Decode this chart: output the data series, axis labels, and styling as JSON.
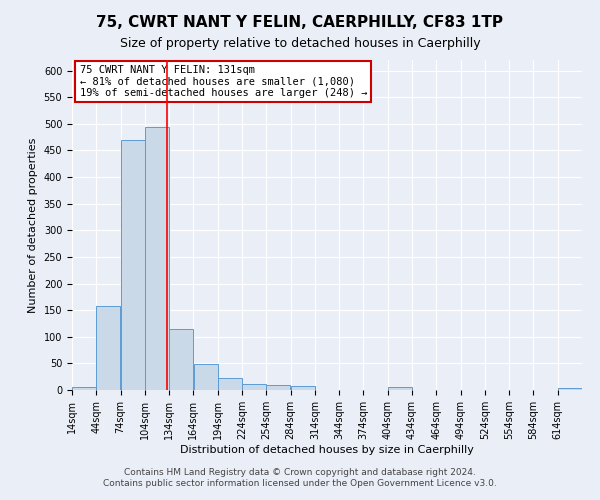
{
  "title": "75, CWRT NANT Y FELIN, CAERPHILLY, CF83 1TP",
  "subtitle": "Size of property relative to detached houses in Caerphilly",
  "xlabel": "Distribution of detached houses by size in Caerphilly",
  "ylabel": "Number of detached properties",
  "bins": [
    14,
    44,
    74,
    104,
    134,
    164,
    194,
    224,
    254,
    284,
    314,
    344,
    374,
    404,
    434,
    464,
    494,
    524,
    554,
    584,
    614
  ],
  "counts": [
    5,
    158,
    470,
    495,
    115,
    48,
    22,
    12,
    10,
    7,
    0,
    0,
    0,
    5,
    0,
    0,
    0,
    0,
    0,
    0,
    3
  ],
  "bar_color": "#c9d9e8",
  "bar_edge_color": "#5b9bd5",
  "red_line_x": 131,
  "annotation_title": "75 CWRT NANT Y FELIN: 131sqm",
  "annotation_line1": "← 81% of detached houses are smaller (1,080)",
  "annotation_line2": "19% of semi-detached houses are larger (248) →",
  "annotation_box_color": "#ffffff",
  "annotation_box_edge_color": "#cc0000",
  "ylim": [
    0,
    620
  ],
  "yticks": [
    0,
    50,
    100,
    150,
    200,
    250,
    300,
    350,
    400,
    450,
    500,
    550,
    600
  ],
  "footer_line1": "Contains HM Land Registry data © Crown copyright and database right 2024.",
  "footer_line2": "Contains public sector information licensed under the Open Government Licence v3.0.",
  "background_color": "#eaeff7",
  "plot_bg_color": "#eaeff7",
  "grid_color": "#ffffff",
  "title_fontsize": 11,
  "subtitle_fontsize": 9,
  "axis_label_fontsize": 8,
  "tick_fontsize": 7,
  "annotation_fontsize": 7.5,
  "footer_fontsize": 6.5
}
